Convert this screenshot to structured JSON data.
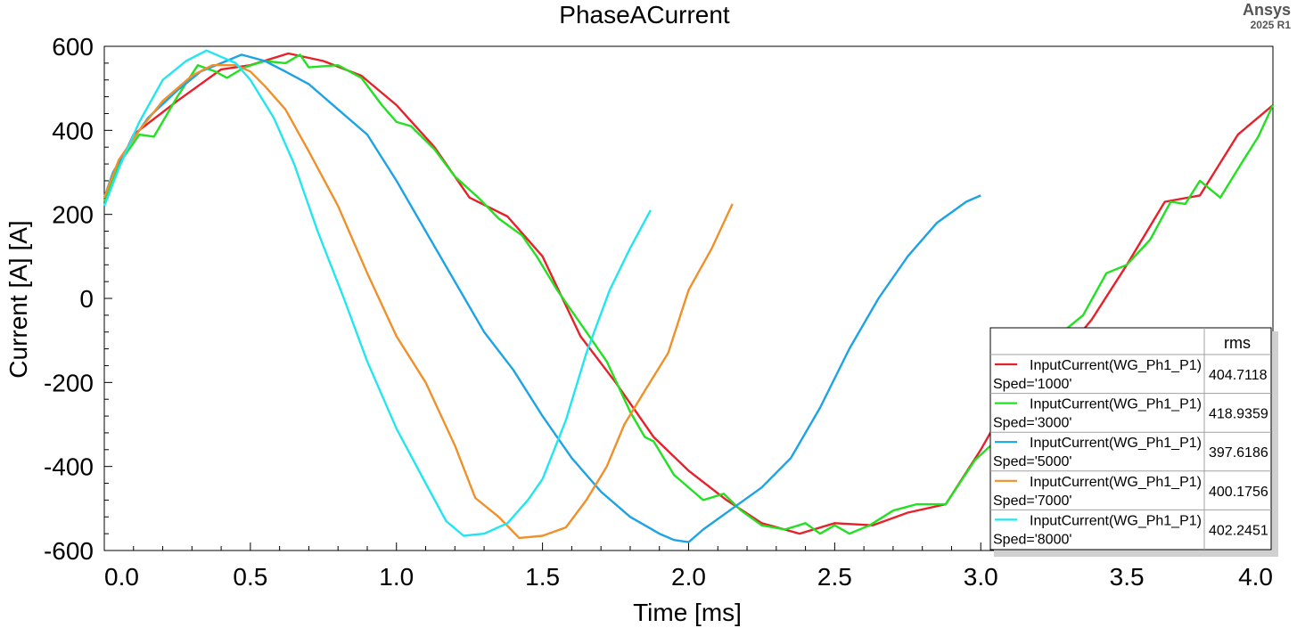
{
  "header": {
    "brand": "Ansys",
    "version": "2025 R1"
  },
  "chart_data": {
    "type": "line",
    "title": "PhaseACurrent",
    "xlabel": "Time [ms]",
    "ylabel": "Current [A] [A]",
    "xlim": [
      0.0,
      4.0
    ],
    "ylim": [
      -600,
      600
    ],
    "xticks": [
      "0.0",
      "0.5",
      "1.0",
      "1.5",
      "2.0",
      "2.5",
      "3.0",
      "3.5",
      "4.0"
    ],
    "yticks": [
      "600",
      "400",
      "200",
      "0",
      "-200",
      "-400",
      "-600"
    ],
    "xtick_values": [
      0,
      0.5,
      1.0,
      1.5,
      2.0,
      2.5,
      3.0,
      3.5,
      4.0
    ],
    "ytick_values": [
      600,
      400,
      200,
      0,
      -200,
      -400,
      -600
    ],
    "grid": false,
    "legend": {
      "position": "bottom-right",
      "header": "rms",
      "entries": [
        {
          "line1": "InputCurrent(WG_Ph1_P1)",
          "line2": "Sped='1000'",
          "rms": "404.7118",
          "color": "#e8202a"
        },
        {
          "line1": "InputCurrent(WG_Ph1_P1)",
          "line2": "Sped='3000'",
          "rms": "418.9359",
          "color": "#22e022"
        },
        {
          "line1": "InputCurrent(WG_Ph1_P1)",
          "line2": "Sped='5000'",
          "rms": "397.6186",
          "color": "#1ca3e6"
        },
        {
          "line1": "InputCurrent(WG_Ph1_P1)",
          "line2": "Sped='7000'",
          "rms": "400.1756",
          "color": "#f0902a"
        },
        {
          "line1": "InputCurrent(WG_Ph1_P1)",
          "line2": "Sped='8000'",
          "rms": "402.2451",
          "color": "#22e6ef"
        }
      ]
    },
    "series": [
      {
        "color": "#e8202a",
        "x": [
          0.0,
          0.1,
          0.25,
          0.4,
          0.5,
          0.63,
          0.75,
          0.88,
          1.0,
          1.13,
          1.25,
          1.38,
          1.5,
          1.63,
          1.75,
          1.88,
          2.0,
          2.13,
          2.25,
          2.38,
          2.5,
          2.63,
          2.75,
          2.88,
          3.0,
          3.13,
          3.25,
          3.38,
          3.5,
          3.63,
          3.75,
          3.88,
          4.0
        ],
        "y": [
          240,
          390,
          470,
          545,
          555,
          583,
          565,
          530,
          460,
          360,
          240,
          195,
          100,
          -90,
          -200,
          -330,
          -410,
          -480,
          -535,
          -560,
          -535,
          -540,
          -510,
          -490,
          -360,
          -200,
          -160,
          -50,
          80,
          230,
          245,
          390,
          460
        ]
      },
      {
        "color": "#22e022",
        "x": [
          0.0,
          0.05,
          0.12,
          0.17,
          0.25,
          0.32,
          0.38,
          0.42,
          0.48,
          0.55,
          0.62,
          0.67,
          0.7,
          0.8,
          0.88,
          0.95,
          1.0,
          1.05,
          1.13,
          1.2,
          1.28,
          1.35,
          1.43,
          1.48,
          1.55,
          1.65,
          1.72,
          1.8,
          1.85,
          1.88,
          1.95,
          2.05,
          2.12,
          2.18,
          2.25,
          2.33,
          2.4,
          2.45,
          2.5,
          2.55,
          2.62,
          2.7,
          2.78,
          2.88,
          2.98,
          3.05,
          3.13,
          3.2,
          3.28,
          3.35,
          3.43,
          3.5,
          3.58,
          3.65,
          3.7,
          3.75,
          3.82,
          3.9,
          3.95,
          4.0
        ],
        "y": [
          230,
          320,
          390,
          385,
          480,
          555,
          540,
          525,
          550,
          565,
          560,
          580,
          550,
          555,
          525,
          460,
          420,
          410,
          355,
          290,
          240,
          190,
          150,
          100,
          20,
          -80,
          -150,
          -270,
          -330,
          -340,
          -420,
          -480,
          -465,
          -505,
          -540,
          -550,
          -535,
          -560,
          -540,
          -560,
          -540,
          -505,
          -490,
          -490,
          -385,
          -340,
          -280,
          -160,
          -80,
          -40,
          60,
          80,
          140,
          230,
          225,
          280,
          240,
          330,
          385,
          460
        ]
      },
      {
        "color": "#1ca3e6",
        "x": [
          0.0,
          0.03,
          0.08,
          0.15,
          0.25,
          0.33,
          0.4,
          0.47,
          0.55,
          0.62,
          0.7,
          0.8,
          0.9,
          1.0,
          1.1,
          1.2,
          1.3,
          1.4,
          1.5,
          1.6,
          1.7,
          1.8,
          1.9,
          1.95,
          2.0,
          2.05,
          2.15,
          2.25,
          2.35,
          2.45,
          2.55,
          2.65,
          2.75,
          2.85,
          2.95,
          3.0
        ],
        "y": [
          240,
          300,
          360,
          430,
          495,
          540,
          560,
          580,
          565,
          540,
          510,
          450,
          390,
          280,
          160,
          40,
          -80,
          -170,
          -280,
          -380,
          -460,
          -520,
          -560,
          -575,
          -580,
          -550,
          -500,
          -450,
          -380,
          -260,
          -120,
          0,
          100,
          180,
          230,
          245
        ]
      },
      {
        "color": "#f0902a",
        "x": [
          0.0,
          0.05,
          0.12,
          0.2,
          0.3,
          0.37,
          0.45,
          0.5,
          0.55,
          0.62,
          0.7,
          0.8,
          0.9,
          1.0,
          1.1,
          1.2,
          1.27,
          1.35,
          1.42,
          1.5,
          1.58,
          1.65,
          1.72,
          1.78,
          1.85,
          1.93,
          2.0,
          2.08,
          2.15
        ],
        "y": [
          240,
          330,
          400,
          470,
          530,
          555,
          555,
          540,
          505,
          450,
          350,
          220,
          60,
          -90,
          -200,
          -350,
          -475,
          -520,
          -570,
          -565,
          -545,
          -480,
          -400,
          -300,
          -220,
          -130,
          20,
          120,
          225
        ]
      },
      {
        "color": "#22e6ef",
        "x": [
          0.0,
          0.05,
          0.12,
          0.2,
          0.28,
          0.35,
          0.4,
          0.45,
          0.5,
          0.58,
          0.65,
          0.73,
          0.82,
          0.9,
          1.0,
          1.1,
          1.17,
          1.23,
          1.3,
          1.38,
          1.45,
          1.5,
          1.58,
          1.65,
          1.73,
          1.8,
          1.87
        ],
        "y": [
          220,
          310,
          420,
          520,
          565,
          590,
          575,
          560,
          520,
          430,
          320,
          160,
          0,
          -150,
          -310,
          -440,
          -530,
          -565,
          -560,
          -535,
          -480,
          -430,
          -290,
          -130,
          20,
          120,
          210
        ]
      }
    ]
  }
}
